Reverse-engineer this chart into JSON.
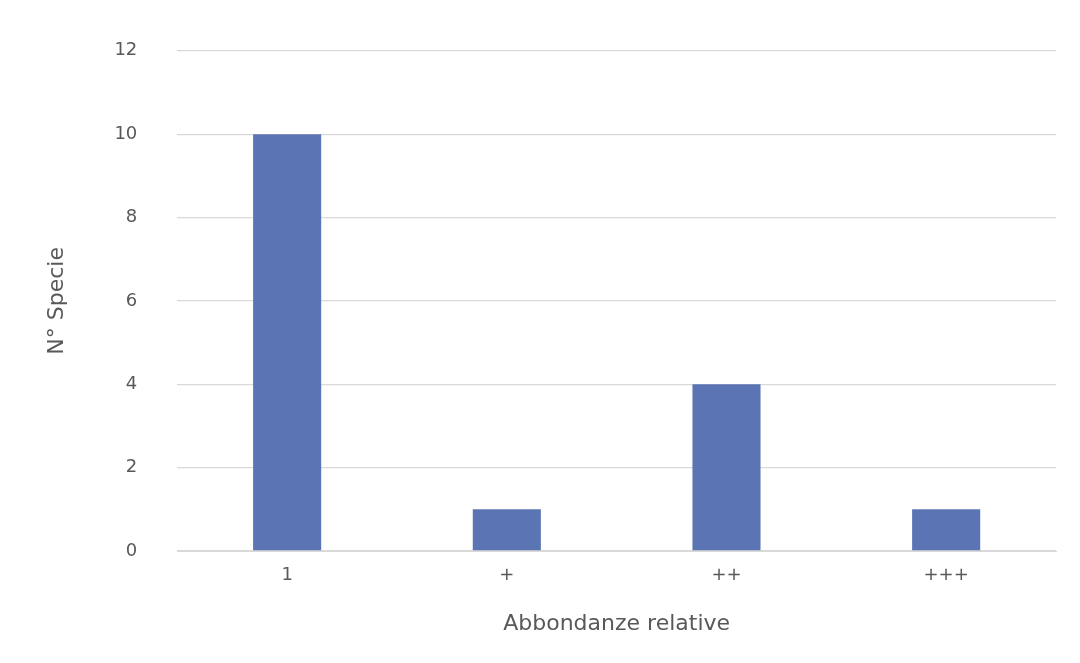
{
  "chart_data": {
    "type": "bar",
    "xlabel": "Abbondanze relative",
    "ylabel": "N° Specie",
    "categories": [
      "1",
      "+",
      "++",
      "+++"
    ],
    "values": [
      10,
      1,
      4,
      1
    ],
    "color": "#5b74b4",
    "ylim": [
      0,
      12
    ],
    "yticks": [
      0,
      2,
      4,
      6,
      8,
      10,
      12
    ],
    "grid": "y",
    "legend": false
  }
}
